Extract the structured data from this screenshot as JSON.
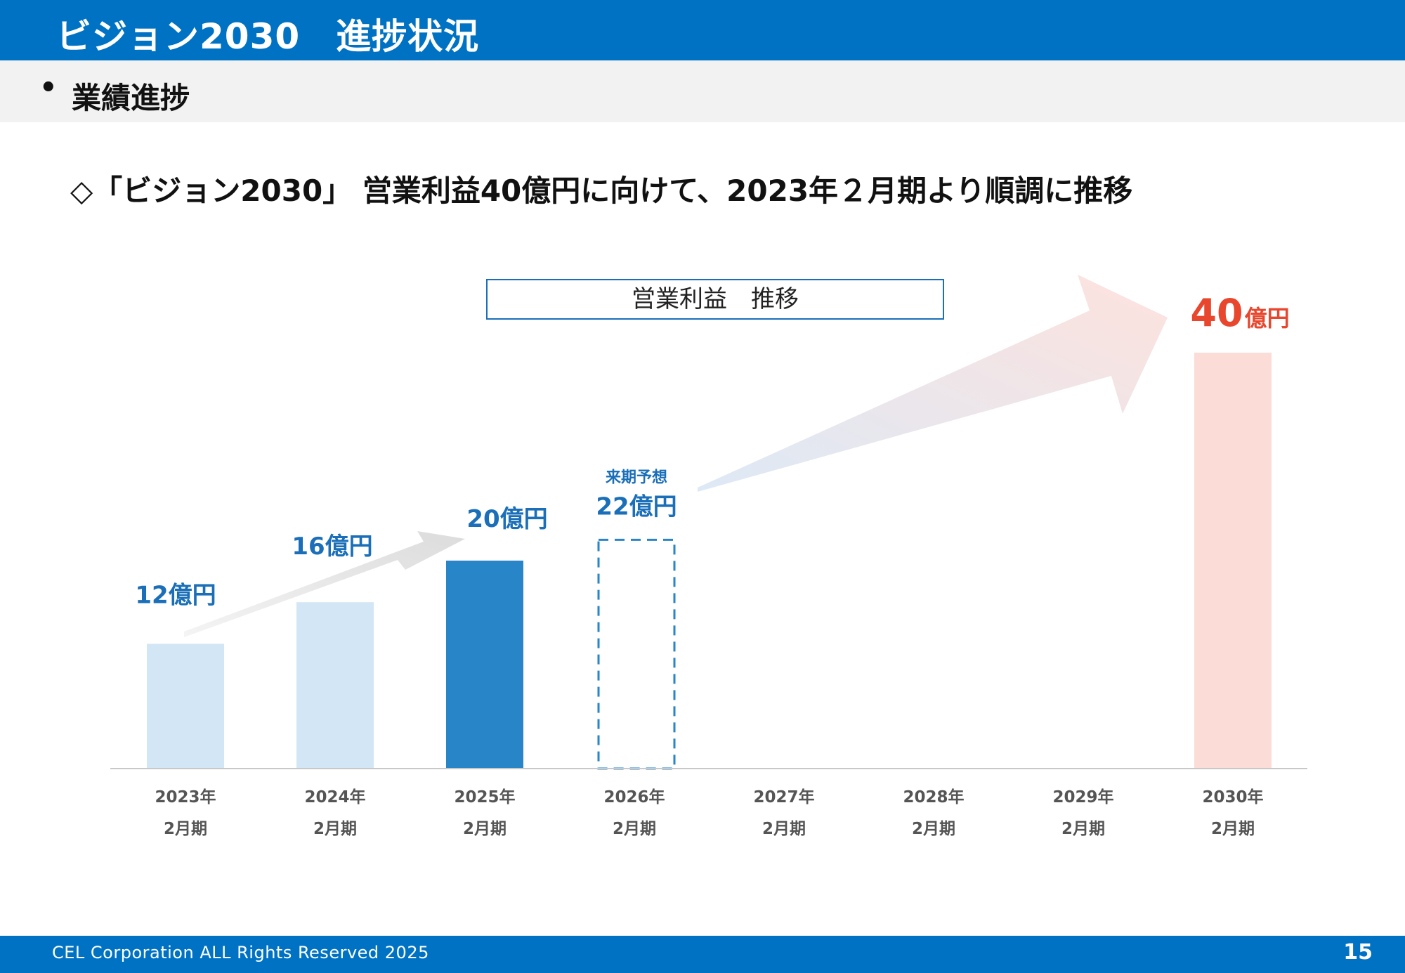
{
  "header": {
    "title": "ビジョン2030　進捗状況"
  },
  "section": {
    "bullet": "•",
    "label": "業績進捗"
  },
  "headline": "◇「ビジョン2030」 営業利益40億円に向けて、2023年２月期より順調に推移",
  "colors": {
    "brand_blue": "#0072c3",
    "bar_light": "#d3e6f5",
    "bar_dark": "#2785c8",
    "bar_target": "#fbdcd7",
    "label_blue": "#1a6fb8",
    "target_red": "#e8472d",
    "axis_label": "#555555"
  },
  "chart_data": {
    "type": "bar",
    "title": "営業利益　推移",
    "unit": "億円",
    "categories": [
      {
        "year": "2023年",
        "period": "2月期"
      },
      {
        "year": "2024年",
        "period": "2月期"
      },
      {
        "year": "2025年",
        "period": "2月期"
      },
      {
        "year": "2026年",
        "period": "2月期"
      },
      {
        "year": "2027年",
        "period": "2月期"
      },
      {
        "year": "2028年",
        "period": "2月期"
      },
      {
        "year": "2029年",
        "period": "2月期"
      },
      {
        "year": "2030年",
        "period": "2月期"
      }
    ],
    "values": [
      12,
      16,
      20,
      22,
      null,
      null,
      null,
      40
    ],
    "styles": [
      "light",
      "light",
      "dark",
      "forecast",
      "none",
      "none",
      "none",
      "target"
    ],
    "data_labels": [
      "12億円",
      "16億円",
      "20億円",
      "22億円",
      "",
      "",
      "",
      "40"
    ],
    "forecast_note": "来期予想",
    "target_suffix": "億円",
    "ylim": [
      0,
      40
    ]
  },
  "footer": {
    "copyright": "CEL Corporation ALL Rights Reserved 2025",
    "page": "15"
  }
}
